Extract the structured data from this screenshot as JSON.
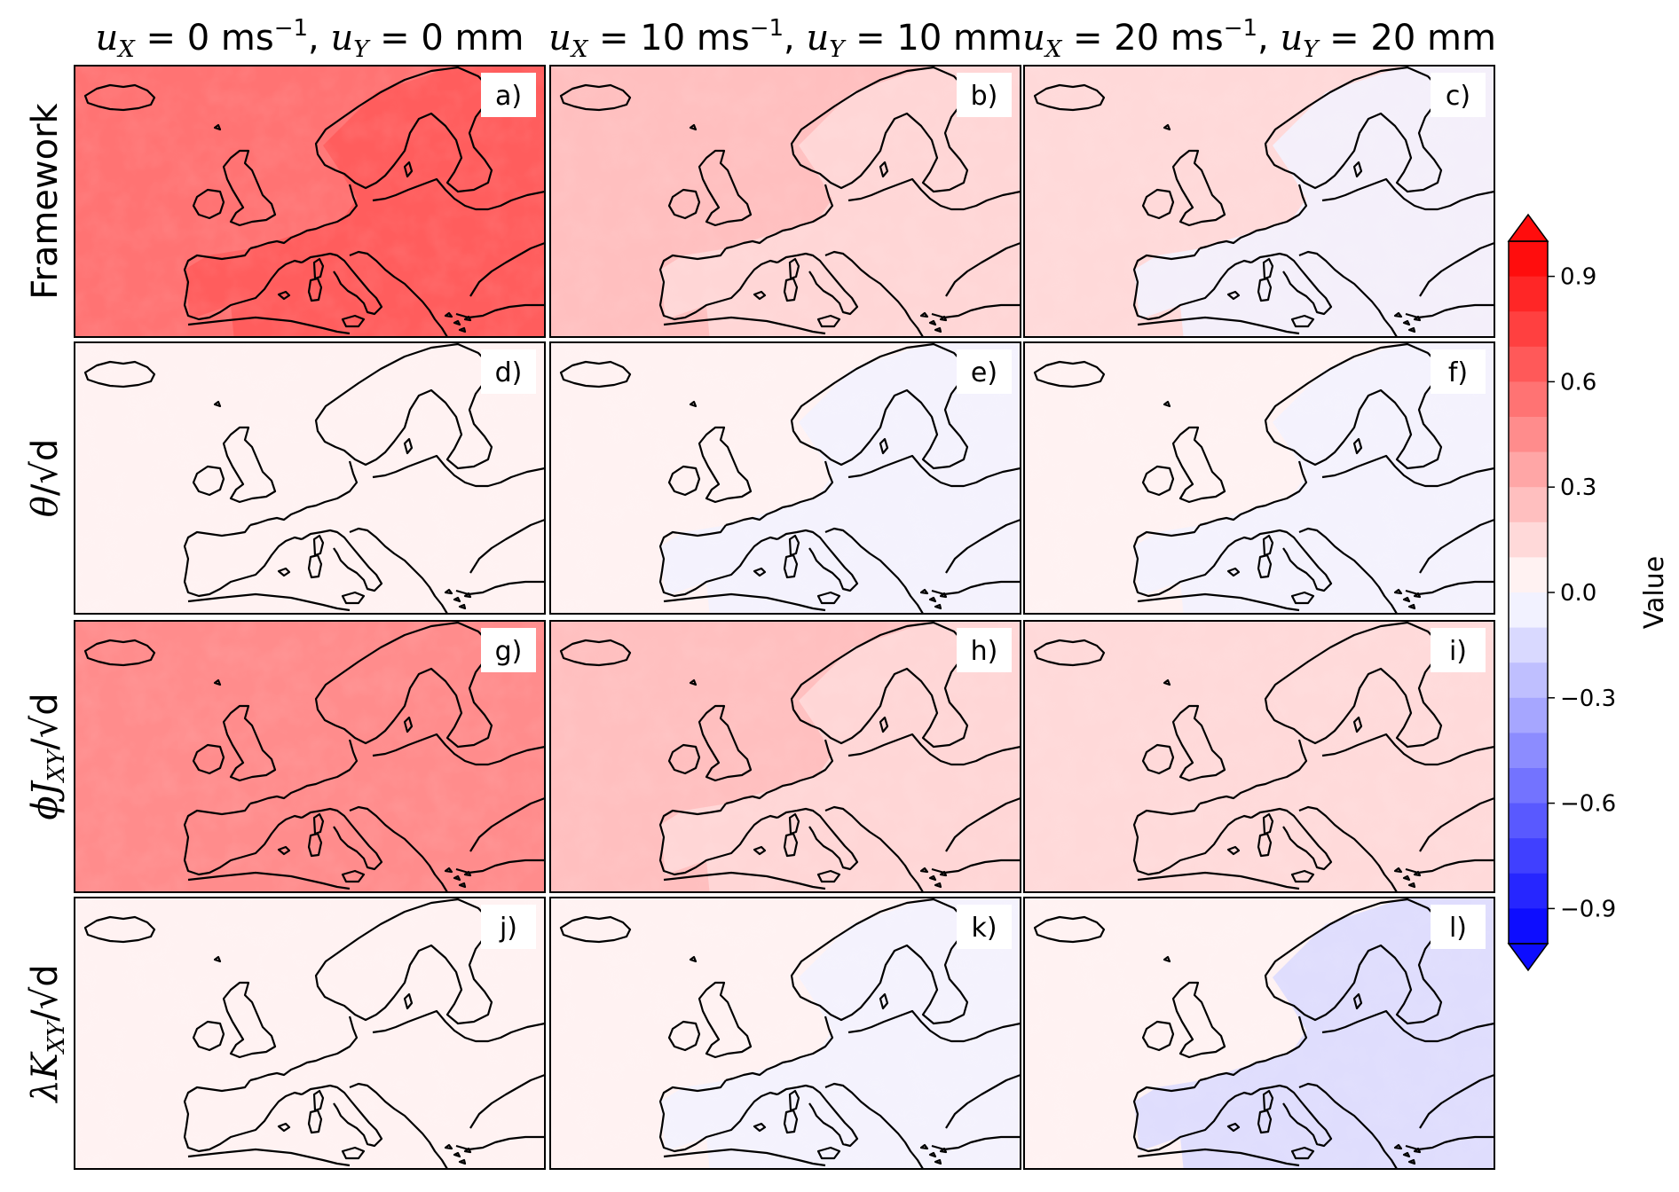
{
  "chart_data": {
    "type": "heatmap",
    "column_titles": [
      {
        "a": "u",
        "a_sub": "X",
        "eq1": " = 0 ms",
        "sup": "−1",
        "sep": ", ",
        "b": "u",
        "b_sub": "Y",
        "eq2": " = 0 mm"
      },
      {
        "a": "u",
        "a_sub": "X",
        "eq1": " = 10 ms",
        "sup": "−1",
        "sep": ", ",
        "b": "u",
        "b_sub": "Y",
        "eq2": " = 10 mm"
      },
      {
        "a": "u",
        "a_sub": "X",
        "eq1": " = 20 ms",
        "sup": "−1",
        "sep": ", ",
        "b": "u",
        "b_sub": "Y",
        "eq2": " = 20 mm"
      }
    ],
    "row_labels": [
      {
        "plain": "Framework"
      },
      {
        "sym": "θ",
        "sub": "",
        "tail": "/√d"
      },
      {
        "sym": "ϕJ",
        "sub": "XY",
        "tail": "/√d"
      },
      {
        "sym": "λK",
        "sub": "XY",
        "tail": "/√d"
      }
    ],
    "panel_tags": [
      "a)",
      "b)",
      "c)",
      "d)",
      "e)",
      "f)",
      "g)",
      "h)",
      "i)",
      "j)",
      "k)",
      "l)"
    ],
    "panels": [
      {
        "tag": "a)",
        "mean": 0.55,
        "land": 0.6
      },
      {
        "tag": "b)",
        "mean": 0.25,
        "land": 0.15
      },
      {
        "tag": "c)",
        "mean": 0.12,
        "land": -0.08
      },
      {
        "tag": "d)",
        "mean": 0.04,
        "land": 0.03
      },
      {
        "tag": "e)",
        "mean": 0.04,
        "land": -0.02
      },
      {
        "tag": "f)",
        "mean": 0.0,
        "land": -0.03
      },
      {
        "tag": "g)",
        "mean": 0.45,
        "land": 0.45
      },
      {
        "tag": "h)",
        "mean": 0.22,
        "land": 0.18
      },
      {
        "tag": "i)",
        "mean": 0.1,
        "land": 0.1
      },
      {
        "tag": "j)",
        "mean": 0.05,
        "land": 0.02
      },
      {
        "tag": "k)",
        "mean": 0.04,
        "land": -0.05
      },
      {
        "tag": "l)",
        "mean": 0.05,
        "land": -0.12
      }
    ],
    "colorbar": {
      "label": "Value",
      "min": -1.0,
      "max": 1.0,
      "levels": 20,
      "ticks": [
        0.9,
        0.6,
        0.3,
        0.0,
        -0.3,
        -0.6,
        -0.9
      ],
      "tick_labels": [
        "0.9",
        "0.6",
        "0.3",
        "0.0",
        "−0.3",
        "−0.6",
        "−0.9"
      ],
      "extend": "both",
      "colormap": "bwr"
    }
  },
  "colors": {
    "positive": "#ff0000",
    "negative": "#0000ff",
    "neutral": "#ffffff",
    "coastline": "#000000"
  }
}
